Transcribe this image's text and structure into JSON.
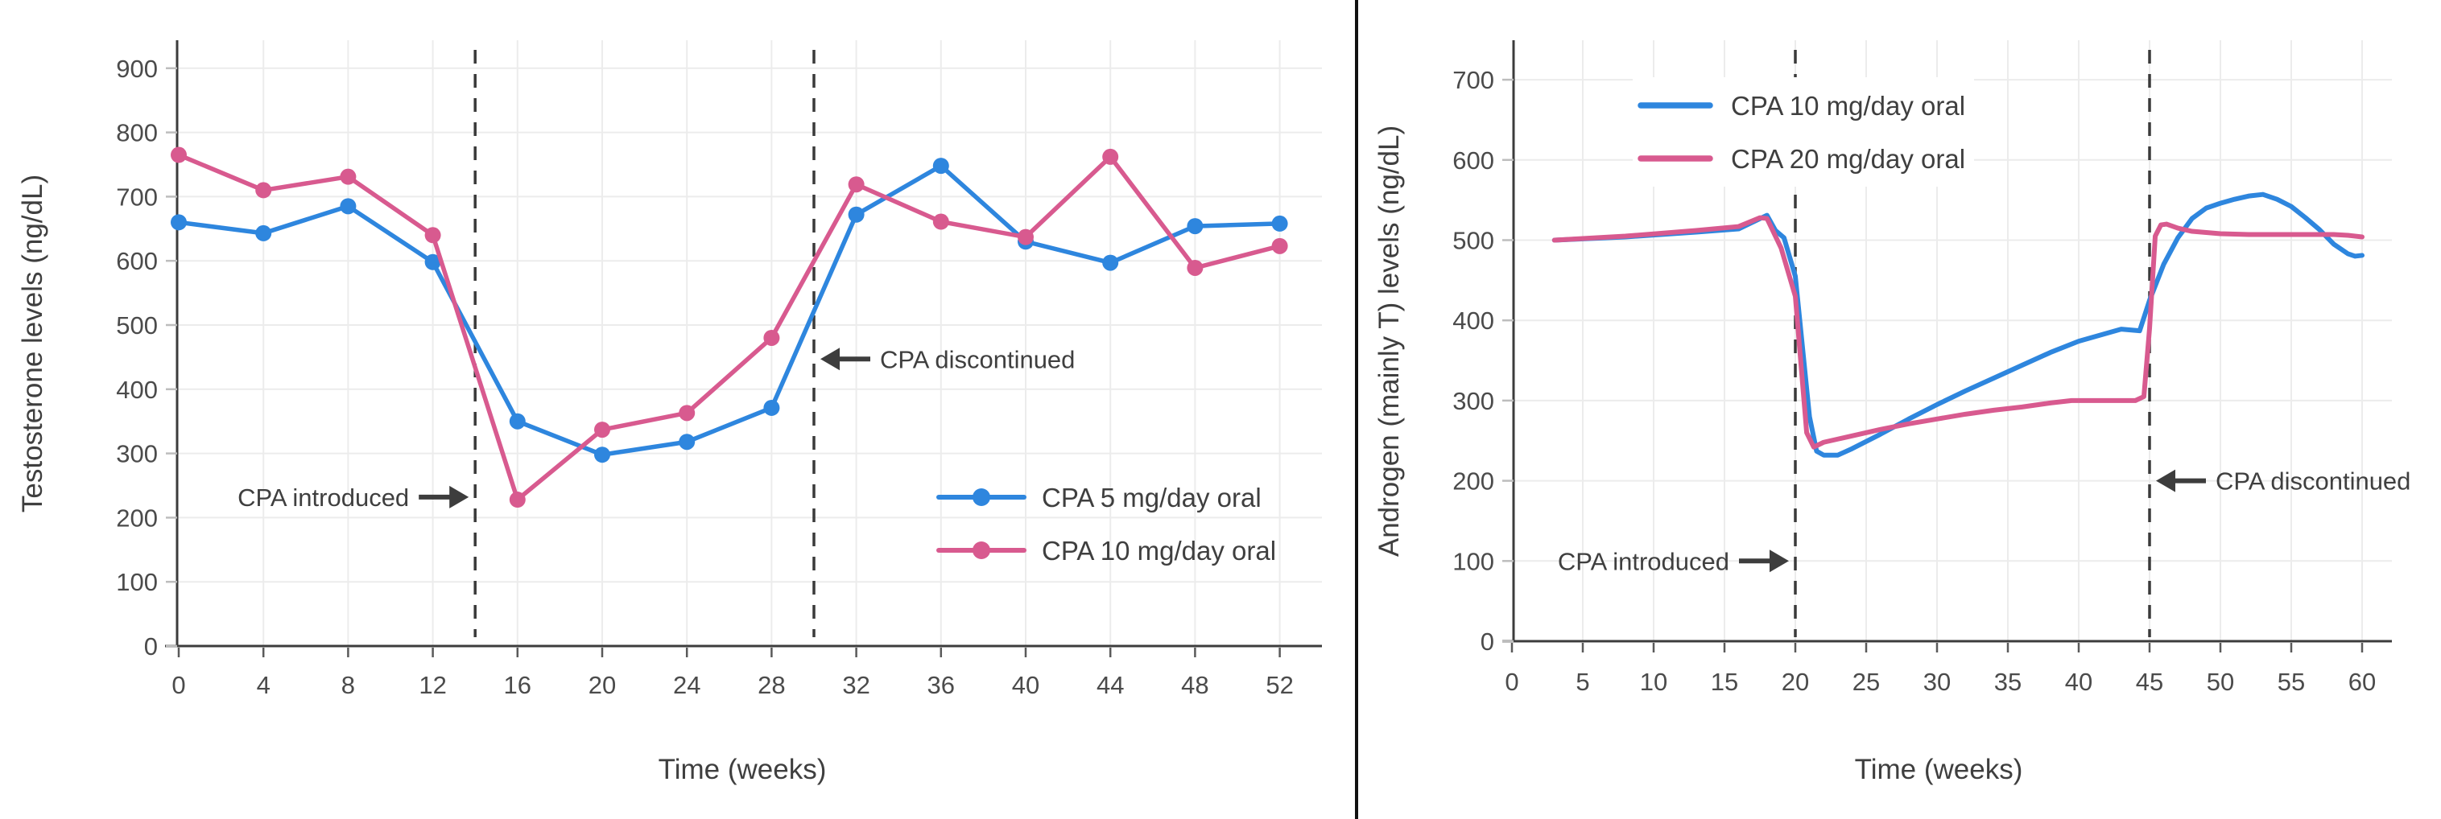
{
  "figure": {
    "background": "#ffffff",
    "divider_color": "#111111",
    "text_color": "#3f3f3f",
    "tick_label_color": "#4b4b4b",
    "axis_color": "#3c3c3c",
    "grid_color": "#ececec",
    "dash_line_color": "#3a3a3a",
    "arrow_color": "#3d3d3d",
    "series_blue": "#2e86de",
    "series_pink": "#d85a8f"
  },
  "chart_data": [
    {
      "type": "line",
      "title": "",
      "xlabel": "Time (weeks)",
      "ylabel": "Testosterone levels (ng/dL)",
      "x_ticks": [
        0,
        4,
        8,
        12,
        16,
        20,
        24,
        28,
        32,
        36,
        40,
        44,
        48,
        52
      ],
      "y_ticks": [
        0,
        100,
        200,
        300,
        400,
        500,
        600,
        700,
        800,
        900
      ],
      "xlim": [
        0,
        54
      ],
      "ylim": [
        0,
        940
      ],
      "grid": true,
      "markers": true,
      "legend_position": "inside-middle-right",
      "series": [
        {
          "name": "CPA 5 mg/day oral",
          "color": "#2e86de",
          "x": [
            0,
            4,
            8,
            12,
            16,
            20,
            24,
            28,
            32,
            36,
            40,
            44,
            48,
            52
          ],
          "y": [
            660,
            643,
            685,
            598,
            350,
            298,
            318,
            371,
            672,
            748,
            630,
            597,
            654,
            658
          ]
        },
        {
          "name": "CPA 10 mg/day oral",
          "color": "#d85a8f",
          "x": [
            0,
            4,
            8,
            12,
            16,
            20,
            24,
            28,
            32,
            36,
            40,
            44,
            48,
            52
          ],
          "y": [
            765,
            710,
            731,
            640,
            228,
            337,
            363,
            480,
            719,
            661,
            637,
            762,
            589,
            623
          ]
        }
      ],
      "vlines": [
        {
          "week": 14
        },
        {
          "week": 30
        }
      ],
      "annotations": [
        {
          "text": "CPA introduced",
          "direction": "right",
          "week": 14,
          "value": 232
        },
        {
          "text": "CPA discontinued",
          "direction": "left",
          "week": 30,
          "value": 447
        }
      ]
    },
    {
      "type": "line",
      "title": "",
      "xlabel": "Time (weeks)",
      "ylabel": "Androgen (mainly T) levels (ng/dL)",
      "x_ticks": [
        0,
        5,
        10,
        15,
        20,
        25,
        30,
        35,
        40,
        45,
        50,
        55,
        60
      ],
      "y_ticks": [
        0,
        100,
        200,
        300,
        400,
        500,
        600,
        700
      ],
      "xlim": [
        0,
        62
      ],
      "ylim": [
        0,
        745
      ],
      "grid": true,
      "markers": false,
      "legend_position": "inside-top",
      "series": [
        {
          "name": "CPA 10 mg/day oral",
          "color": "#2e86de",
          "x": [
            3,
            8,
            13,
            16,
            18,
            18.6,
            19.2,
            20,
            21,
            21.5,
            22,
            23,
            24,
            26,
            28,
            30,
            32,
            34,
            36,
            38,
            40,
            42,
            43,
            44.3,
            45,
            46,
            47,
            48,
            49,
            50,
            51,
            52,
            53,
            54,
            55,
            56,
            57,
            58,
            59,
            59.5,
            60
          ],
          "y": [
            500,
            504,
            510,
            514,
            531,
            512,
            503,
            455,
            280,
            237,
            232,
            232,
            240,
            258,
            277,
            295,
            312,
            328,
            344,
            360,
            374,
            384,
            389,
            387,
            425,
            470,
            503,
            527,
            540,
            546,
            551,
            555,
            557,
            551,
            542,
            528,
            513,
            495,
            483,
            480,
            481
          ]
        },
        {
          "name": "CPA 20 mg/day oral",
          "color": "#d85a8f",
          "x": [
            3,
            8,
            13,
            16,
            17.5,
            18,
            19,
            20,
            20.8,
            21.3,
            22,
            23,
            24,
            26,
            28,
            30,
            32,
            34,
            36,
            38,
            39.5,
            44,
            44.6,
            45,
            45.4,
            45.8,
            46.2,
            47,
            48,
            50,
            52,
            54,
            56,
            58,
            59,
            60
          ],
          "y": [
            500,
            505,
            512,
            517,
            528,
            527,
            490,
            430,
            260,
            242,
            248,
            252,
            256,
            264,
            271,
            277,
            283,
            288,
            292,
            297,
            300,
            300,
            305,
            390,
            505,
            519,
            520,
            515,
            511,
            508,
            507,
            507,
            507,
            507,
            506,
            504
          ]
        }
      ],
      "vlines": [
        {
          "week": 20
        },
        {
          "week": 45
        }
      ],
      "annotations": [
        {
          "text": "CPA introduced",
          "direction": "right",
          "week": 20,
          "value": 100
        },
        {
          "text": "CPA discontinued",
          "direction": "left",
          "week": 45,
          "value": 200
        }
      ]
    }
  ]
}
